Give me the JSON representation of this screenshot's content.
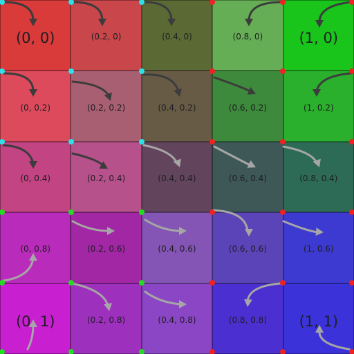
{
  "grid": {
    "rows": [
      [
        {
          "label": "(0, 0)",
          "color": "#d93a3a",
          "big": true
        },
        {
          "label": "(0.2, 0)",
          "color": "#c9474a"
        },
        {
          "label": "(0.4, 0)",
          "color": "#5b6a35"
        },
        {
          "label": "(0.8, 0)",
          "color": "#66ae55"
        },
        {
          "label": "(1, 0)",
          "color": "#19c41b",
          "big": true
        }
      ],
      [
        {
          "label": "(0, 0.2)",
          "color": "#dd4a5c"
        },
        {
          "label": "(0.2, 0.2)",
          "color": "#a85f72"
        },
        {
          "label": "(0.4, 0.2)",
          "color": "#675b45"
        },
        {
          "label": "(0.6, 0.2)",
          "color": "#3d8a3c"
        },
        {
          "label": "(1, 0.2)",
          "color": "#2ab02c"
        }
      ],
      [
        {
          "label": "(0, 0.4)",
          "color": "#c24482"
        },
        {
          "label": "(0.2, 0.4)",
          "color": "#b6518c"
        },
        {
          "label": "(0.4, 0.4)",
          "color": "#62445c"
        },
        {
          "label": "(0.6, 0.4)",
          "color": "#3e5858"
        },
        {
          "label": "(0.8, 0.4)",
          "color": "#2e6b56"
        }
      ],
      [
        {
          "label": "(0, 0.8)",
          "color": "#b92bba"
        },
        {
          "label": "(0.2, 0.6)",
          "color": "#a227a5"
        },
        {
          "label": "(0.4, 0.6)",
          "color": "#8455b5"
        },
        {
          "label": "(0.6, 0.6)",
          "color": "#5a44b8"
        },
        {
          "label": "(1, 0.6)",
          "color": "#3c3ad0"
        }
      ],
      [
        {
          "label": "(0, 1)",
          "color": "#c81fd0",
          "big": true
        },
        {
          "label": "(0.2, 0.8)",
          "color": "#9d30bd"
        },
        {
          "label": "(0.4, 0.8)",
          "color": "#8b46c5"
        },
        {
          "label": "(0.8, 0.8)",
          "color": "#4b2fd0"
        },
        {
          "label": "(1, 1)",
          "color": "#3b33d9",
          "big": true
        }
      ]
    ]
  },
  "arrows": {
    "dark_color": "#3c3c3c",
    "light_color": "#a6a6a6"
  },
  "markers": {
    "cyan": "#2ee0e8",
    "red": "#ee2222",
    "green": "#22dd22"
  }
}
